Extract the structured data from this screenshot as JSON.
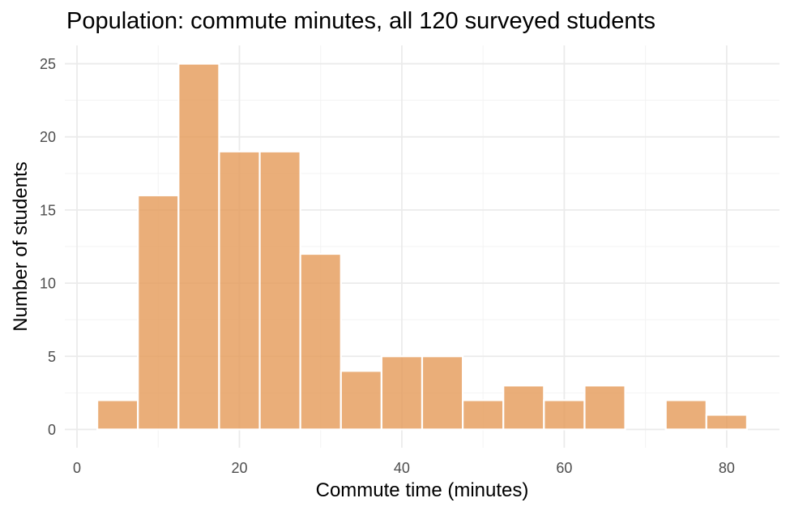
{
  "chart_data": {
    "type": "bar",
    "title": "Population: commute minutes, all 120 surveyed students",
    "xlabel": "Commute time (minutes)",
    "ylabel": "Number of students",
    "bin_width": 5,
    "bins": [
      {
        "start": 2.5,
        "end": 7.5,
        "count": 2
      },
      {
        "start": 7.5,
        "end": 12.5,
        "count": 16
      },
      {
        "start": 12.5,
        "end": 17.5,
        "count": 25
      },
      {
        "start": 17.5,
        "end": 22.5,
        "count": 19
      },
      {
        "start": 22.5,
        "end": 27.5,
        "count": 19
      },
      {
        "start": 27.5,
        "end": 32.5,
        "count": 12
      },
      {
        "start": 32.5,
        "end": 37.5,
        "count": 4
      },
      {
        "start": 37.5,
        "end": 42.5,
        "count": 5
      },
      {
        "start": 42.5,
        "end": 47.5,
        "count": 5
      },
      {
        "start": 47.5,
        "end": 52.5,
        "count": 2
      },
      {
        "start": 52.5,
        "end": 57.5,
        "count": 3
      },
      {
        "start": 57.5,
        "end": 62.5,
        "count": 2
      },
      {
        "start": 62.5,
        "end": 67.5,
        "count": 3
      },
      {
        "start": 67.5,
        "end": 72.5,
        "count": 0
      },
      {
        "start": 72.5,
        "end": 77.5,
        "count": 2
      },
      {
        "start": 77.5,
        "end": 82.5,
        "count": 1
      }
    ],
    "xticks": [
      0,
      20,
      40,
      60,
      80
    ],
    "yticks": [
      0,
      5,
      10,
      15,
      20,
      25
    ],
    "xlim": [
      -1.5,
      86.5
    ],
    "ylim": [
      -1.25,
      26.25
    ],
    "grid": true,
    "legend": "none",
    "bar_color": "#e59a58",
    "bar_opacity": 0.8
  }
}
